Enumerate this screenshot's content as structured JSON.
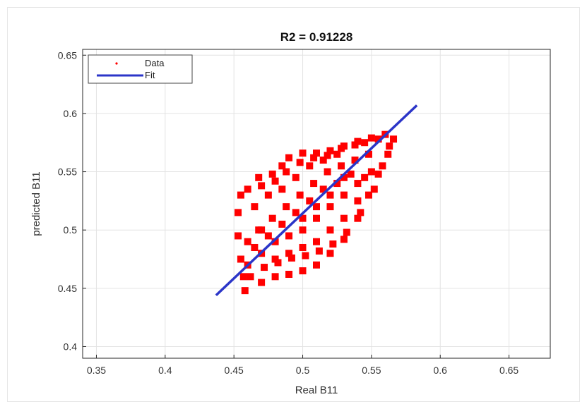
{
  "chart_data": {
    "type": "scatter",
    "title": "R2 = 0.91228",
    "xlabel": "Real B11",
    "ylabel": "predicted B11",
    "xlim": [
      0.34,
      0.68
    ],
    "ylim": [
      0.39,
      0.655
    ],
    "xticks": [
      0.35,
      0.4,
      0.45,
      0.5,
      0.55,
      0.6,
      0.65
    ],
    "yticks": [
      0.4,
      0.45,
      0.5,
      0.55,
      0.6,
      0.65
    ],
    "xtick_labels": [
      "0.35",
      "0.4",
      "0.45",
      "0.5",
      "0.55",
      "0.6",
      "0.65"
    ],
    "ytick_labels": [
      "0.4",
      "0.45",
      "0.5",
      "0.55",
      "0.6",
      "0.65"
    ],
    "grid": true,
    "legend_position": "top-left",
    "series": [
      {
        "name": "Data",
        "kind": "scatter",
        "color": "#ff0000",
        "points": [
          [
            0.458,
            0.448
          ],
          [
            0.462,
            0.46
          ],
          [
            0.47,
            0.455
          ],
          [
            0.48,
            0.46
          ],
          [
            0.49,
            0.462
          ],
          [
            0.5,
            0.465
          ],
          [
            0.51,
            0.47
          ],
          [
            0.52,
            0.48
          ],
          [
            0.53,
            0.492
          ],
          [
            0.54,
            0.51
          ],
          [
            0.548,
            0.53
          ],
          [
            0.555,
            0.548
          ],
          [
            0.562,
            0.565
          ],
          [
            0.566,
            0.578
          ],
          [
            0.56,
            0.582
          ],
          [
            0.55,
            0.579
          ],
          [
            0.54,
            0.576
          ],
          [
            0.53,
            0.572
          ],
          [
            0.52,
            0.568
          ],
          [
            0.51,
            0.566
          ],
          [
            0.5,
            0.566
          ],
          [
            0.49,
            0.562
          ],
          [
            0.485,
            0.555
          ],
          [
            0.48,
            0.542
          ],
          [
            0.47,
            0.538
          ],
          [
            0.46,
            0.535
          ],
          [
            0.455,
            0.53
          ],
          [
            0.453,
            0.515
          ],
          [
            0.453,
            0.495
          ],
          [
            0.455,
            0.475
          ],
          [
            0.457,
            0.46
          ],
          [
            0.468,
            0.5
          ],
          [
            0.478,
            0.51
          ],
          [
            0.488,
            0.52
          ],
          [
            0.498,
            0.53
          ],
          [
            0.508,
            0.54
          ],
          [
            0.518,
            0.55
          ],
          [
            0.528,
            0.555
          ],
          [
            0.538,
            0.56
          ],
          [
            0.548,
            0.565
          ],
          [
            0.47,
            0.48
          ],
          [
            0.48,
            0.49
          ],
          [
            0.49,
            0.495
          ],
          [
            0.5,
            0.5
          ],
          [
            0.51,
            0.51
          ],
          [
            0.52,
            0.52
          ],
          [
            0.53,
            0.53
          ],
          [
            0.54,
            0.54
          ],
          [
            0.55,
            0.55
          ],
          [
            0.465,
            0.52
          ],
          [
            0.475,
            0.53
          ],
          [
            0.485,
            0.535
          ],
          [
            0.495,
            0.545
          ],
          [
            0.505,
            0.555
          ],
          [
            0.515,
            0.56
          ],
          [
            0.525,
            0.565
          ],
          [
            0.46,
            0.49
          ],
          [
            0.47,
            0.5
          ],
          [
            0.48,
            0.475
          ],
          [
            0.49,
            0.48
          ],
          [
            0.5,
            0.485
          ],
          [
            0.51,
            0.49
          ],
          [
            0.52,
            0.5
          ],
          [
            0.53,
            0.51
          ],
          [
            0.54,
            0.525
          ],
          [
            0.545,
            0.545
          ],
          [
            0.535,
            0.548
          ],
          [
            0.525,
            0.54
          ],
          [
            0.515,
            0.535
          ],
          [
            0.505,
            0.525
          ],
          [
            0.495,
            0.515
          ],
          [
            0.485,
            0.505
          ],
          [
            0.475,
            0.495
          ],
          [
            0.465,
            0.485
          ],
          [
            0.46,
            0.47
          ],
          [
            0.472,
            0.468
          ],
          [
            0.482,
            0.472
          ],
          [
            0.492,
            0.476
          ],
          [
            0.502,
            0.478
          ],
          [
            0.512,
            0.482
          ],
          [
            0.522,
            0.488
          ],
          [
            0.532,
            0.498
          ],
          [
            0.542,
            0.515
          ],
          [
            0.552,
            0.535
          ],
          [
            0.558,
            0.555
          ],
          [
            0.563,
            0.572
          ],
          [
            0.468,
            0.545
          ],
          [
            0.478,
            0.548
          ],
          [
            0.488,
            0.55
          ],
          [
            0.498,
            0.558
          ],
          [
            0.508,
            0.562
          ],
          [
            0.518,
            0.564
          ],
          [
            0.528,
            0.57
          ],
          [
            0.538,
            0.573
          ],
          [
            0.545,
            0.575
          ],
          [
            0.555,
            0.578
          ],
          [
            0.5,
            0.51
          ],
          [
            0.51,
            0.52
          ],
          [
            0.52,
            0.53
          ],
          [
            0.53,
            0.545
          ]
        ]
      },
      {
        "name": "Fit",
        "kind": "line",
        "color": "#2b35c8",
        "x": [
          0.437,
          0.583
        ],
        "y": [
          0.444,
          0.607
        ]
      }
    ]
  }
}
